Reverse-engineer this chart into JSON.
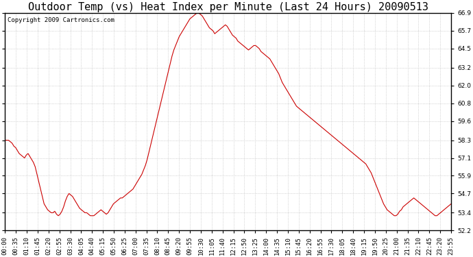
{
  "title": "Outdoor Temp (vs) Heat Index per Minute (Last 24 Hours) 20090513",
  "copyright": "Copyright 2009 Cartronics.com",
  "yticks": [
    52.2,
    53.4,
    54.7,
    55.9,
    57.1,
    58.3,
    59.6,
    60.8,
    62.0,
    63.2,
    64.5,
    65.7,
    66.9
  ],
  "ymin": 52.2,
  "ymax": 66.9,
  "line_color": "#cc0000",
  "background_color": "#ffffff",
  "grid_color": "#bbbbbb",
  "title_fontsize": 11,
  "copyright_fontsize": 6.5,
  "tick_fontsize": 6.5,
  "xtick_labels": [
    "00:00",
    "00:35",
    "01:10",
    "01:45",
    "02:20",
    "02:55",
    "03:30",
    "04:05",
    "04:40",
    "05:15",
    "05:50",
    "06:25",
    "07:00",
    "07:35",
    "08:10",
    "08:45",
    "09:20",
    "09:55",
    "10:30",
    "11:05",
    "11:40",
    "12:15",
    "12:50",
    "13:25",
    "14:00",
    "14:35",
    "15:10",
    "15:45",
    "16:20",
    "16:55",
    "17:30",
    "18:05",
    "18:40",
    "19:15",
    "19:50",
    "20:25",
    "21:00",
    "21:35",
    "22:10",
    "22:45",
    "23:20",
    "23:55"
  ],
  "data_y": [
    58.3,
    58.3,
    58.3,
    58.2,
    58.1,
    57.9,
    57.8,
    57.6,
    57.4,
    57.3,
    57.2,
    57.1,
    57.3,
    57.4,
    57.2,
    57.0,
    56.8,
    56.5,
    56.0,
    55.5,
    55.0,
    54.5,
    54.0,
    53.8,
    53.6,
    53.5,
    53.4,
    53.4,
    53.5,
    53.3,
    53.2,
    53.3,
    53.5,
    53.8,
    54.2,
    54.5,
    54.7,
    54.6,
    54.5,
    54.3,
    54.1,
    53.9,
    53.7,
    53.6,
    53.5,
    53.4,
    53.4,
    53.3,
    53.2,
    53.2,
    53.2,
    53.3,
    53.4,
    53.5,
    53.6,
    53.5,
    53.4,
    53.3,
    53.4,
    53.6,
    53.8,
    54.0,
    54.1,
    54.2,
    54.3,
    54.4,
    54.4,
    54.5,
    54.6,
    54.7,
    54.8,
    54.9,
    55.0,
    55.2,
    55.4,
    55.6,
    55.8,
    56.0,
    56.3,
    56.6,
    57.0,
    57.5,
    58.0,
    58.5,
    59.0,
    59.5,
    60.0,
    60.5,
    61.0,
    61.5,
    62.0,
    62.5,
    63.0,
    63.5,
    64.0,
    64.4,
    64.7,
    65.0,
    65.3,
    65.5,
    65.7,
    65.9,
    66.1,
    66.3,
    66.5,
    66.6,
    66.7,
    66.8,
    66.9,
    66.9,
    66.8,
    66.7,
    66.5,
    66.3,
    66.1,
    65.9,
    65.8,
    65.7,
    65.5,
    65.6,
    65.7,
    65.8,
    65.9,
    66.0,
    66.1,
    66.0,
    65.8,
    65.6,
    65.4,
    65.3,
    65.2,
    65.0,
    64.9,
    64.8,
    64.7,
    64.6,
    64.5,
    64.4,
    64.5,
    64.6,
    64.7,
    64.7,
    64.6,
    64.5,
    64.3,
    64.2,
    64.1,
    64.0,
    63.9,
    63.8,
    63.6,
    63.4,
    63.2,
    63.0,
    62.8,
    62.5,
    62.2,
    62.0,
    61.8,
    61.6,
    61.4,
    61.2,
    61.0,
    60.8,
    60.6,
    60.5,
    60.4,
    60.3,
    60.2,
    60.1,
    60.0,
    59.9,
    59.8,
    59.7,
    59.6,
    59.5,
    59.4,
    59.3,
    59.2,
    59.1,
    59.0,
    58.9,
    58.8,
    58.7,
    58.6,
    58.5,
    58.4,
    58.3,
    58.2,
    58.1,
    58.0,
    57.9,
    57.8,
    57.7,
    57.6,
    57.5,
    57.4,
    57.3,
    57.2,
    57.1,
    57.0,
    56.9,
    56.8,
    56.7,
    56.5,
    56.3,
    56.1,
    55.8,
    55.5,
    55.2,
    54.9,
    54.6,
    54.3,
    54.0,
    53.8,
    53.6,
    53.5,
    53.4,
    53.3,
    53.2,
    53.2,
    53.3,
    53.5,
    53.6,
    53.8,
    53.9,
    54.0,
    54.1,
    54.2,
    54.3,
    54.4,
    54.3,
    54.2,
    54.1,
    54.0,
    53.9,
    53.8,
    53.7,
    53.6,
    53.5,
    53.4,
    53.3,
    53.2,
    53.2,
    53.3,
    53.4,
    53.5,
    53.6,
    53.7,
    53.8,
    53.9,
    54.0
  ]
}
